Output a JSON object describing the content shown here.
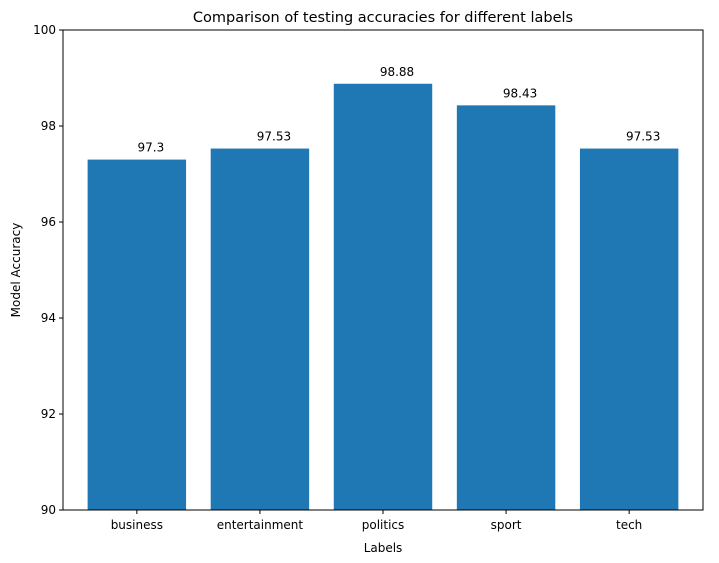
{
  "chart_data": {
    "type": "bar",
    "title": "Comparison of testing accuracies for different labels",
    "xlabel": "Labels",
    "ylabel": "Model Accuracy",
    "categories": [
      "business",
      "entertainment",
      "politics",
      "sport",
      "tech"
    ],
    "values": [
      97.3,
      97.53,
      98.88,
      98.43,
      97.53
    ],
    "value_labels": [
      "97.3",
      "97.53",
      "98.88",
      "98.43",
      "97.53"
    ],
    "ylim": [
      90,
      100
    ],
    "yticks": [
      90,
      92,
      94,
      96,
      98,
      100
    ],
    "ytick_labels": [
      "90",
      "92",
      "94",
      "96",
      "98",
      "100"
    ],
    "grid": false,
    "legend": "none",
    "bar_color": "#1f77b4"
  }
}
